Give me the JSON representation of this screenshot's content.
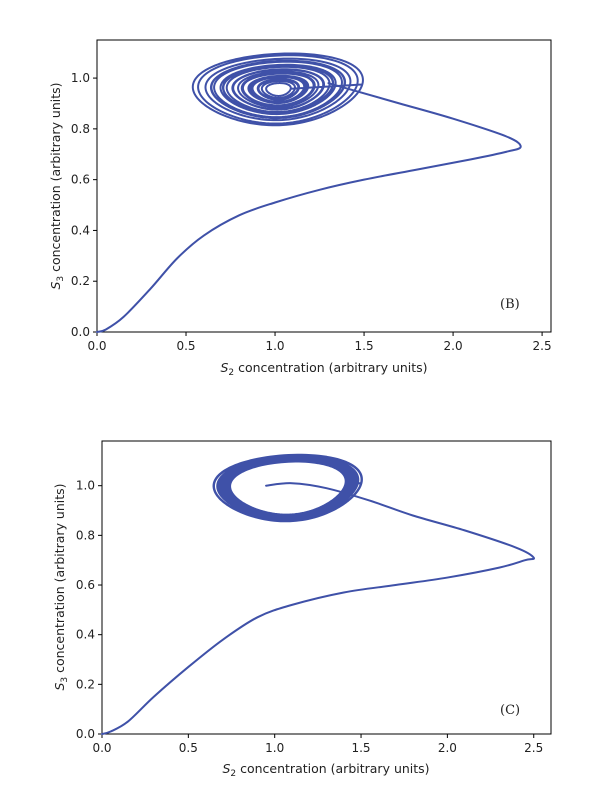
{
  "chart_data": [
    {
      "type": "line",
      "panel_label": "(B)",
      "xlabel_main": "S",
      "xlabel_sub": "2",
      "xlabel_rest": " concentration (arbitrary units)",
      "ylabel_main": "S",
      "ylabel_sub": "3",
      "ylabel_rest": " concentration (arbitrary units)",
      "xlim": [
        0,
        2.55
      ],
      "ylim": [
        0,
        1.15
      ],
      "xticks": [
        0.0,
        0.5,
        1.0,
        1.5,
        2.0,
        2.5
      ],
      "xtick_labels": [
        "0.0",
        "0.5",
        "1.0",
        "1.5",
        "2.0",
        "2.5"
      ],
      "yticks": [
        0.0,
        0.2,
        0.4,
        0.6,
        0.8,
        1.0
      ],
      "ytick_labels": [
        "0.0",
        "0.2",
        "0.4",
        "0.6",
        "0.8",
        "1.0"
      ],
      "color": "#3f51a8",
      "transient": [
        [
          0,
          0
        ],
        [
          0.05,
          0.01
        ],
        [
          0.15,
          0.06
        ],
        [
          0.3,
          0.17
        ],
        [
          0.45,
          0.29
        ],
        [
          0.6,
          0.38
        ],
        [
          0.8,
          0.46
        ],
        [
          1.0,
          0.51
        ],
        [
          1.25,
          0.56
        ],
        [
          1.5,
          0.6
        ],
        [
          1.8,
          0.64
        ],
        [
          2.1,
          0.68
        ],
        [
          2.3,
          0.71
        ],
        [
          2.38,
          0.73
        ],
        [
          2.3,
          0.77
        ],
        [
          2.0,
          0.84
        ],
        [
          1.7,
          0.9
        ],
        [
          1.45,
          0.95
        ],
        [
          1.3,
          0.98
        ]
      ],
      "attractor": {
        "cx": 1.02,
        "cy": 0.955,
        "rx_outer": 0.47,
        "ry_outer": 0.14,
        "rx_inner": 0.08,
        "ry_inner": 0.03,
        "loops": 26,
        "tilt": 0.35
      }
    },
    {
      "type": "line",
      "panel_label": "(C)",
      "xlabel_main": "S",
      "xlabel_sub": "2",
      "xlabel_rest": " concentration (arbitrary units)",
      "ylabel_main": "S",
      "ylabel_sub": "3",
      "ylabel_rest": " concentration (arbitrary units)",
      "xlim": [
        0,
        2.6
      ],
      "ylim": [
        0,
        1.18
      ],
      "xticks": [
        0.0,
        0.5,
        1.0,
        1.5,
        2.0,
        2.5
      ],
      "xtick_labels": [
        "0.0",
        "0.5",
        "1.0",
        "1.5",
        "2.0",
        "2.5"
      ],
      "yticks": [
        0.0,
        0.2,
        0.4,
        0.6,
        0.8,
        1.0
      ],
      "ytick_labels": [
        "0.0",
        "0.2",
        "0.4",
        "0.6",
        "0.8",
        "1.0"
      ],
      "color": "#3f51a8",
      "transient": [
        [
          0,
          0
        ],
        [
          0.05,
          0.01
        ],
        [
          0.15,
          0.05
        ],
        [
          0.3,
          0.15
        ],
        [
          0.5,
          0.27
        ],
        [
          0.7,
          0.38
        ],
        [
          0.9,
          0.47
        ],
        [
          1.1,
          0.52
        ],
        [
          1.4,
          0.57
        ],
        [
          1.7,
          0.6
        ],
        [
          2.0,
          0.63
        ],
        [
          2.3,
          0.67
        ],
        [
          2.45,
          0.7
        ],
        [
          2.5,
          0.71
        ],
        [
          2.4,
          0.75
        ],
        [
          2.1,
          0.82
        ],
        [
          1.8,
          0.88
        ],
        [
          1.55,
          0.94
        ],
        [
          1.3,
          0.99
        ],
        [
          1.1,
          1.01
        ],
        [
          0.95,
          1.0
        ]
      ],
      "attractor": {
        "cx": 1.08,
        "cy": 0.99,
        "rx_outer": 0.42,
        "ry_outer": 0.13,
        "rx_inner": 0.34,
        "ry_inner": 0.11,
        "loops": 22,
        "tilt": 0.4
      }
    }
  ]
}
